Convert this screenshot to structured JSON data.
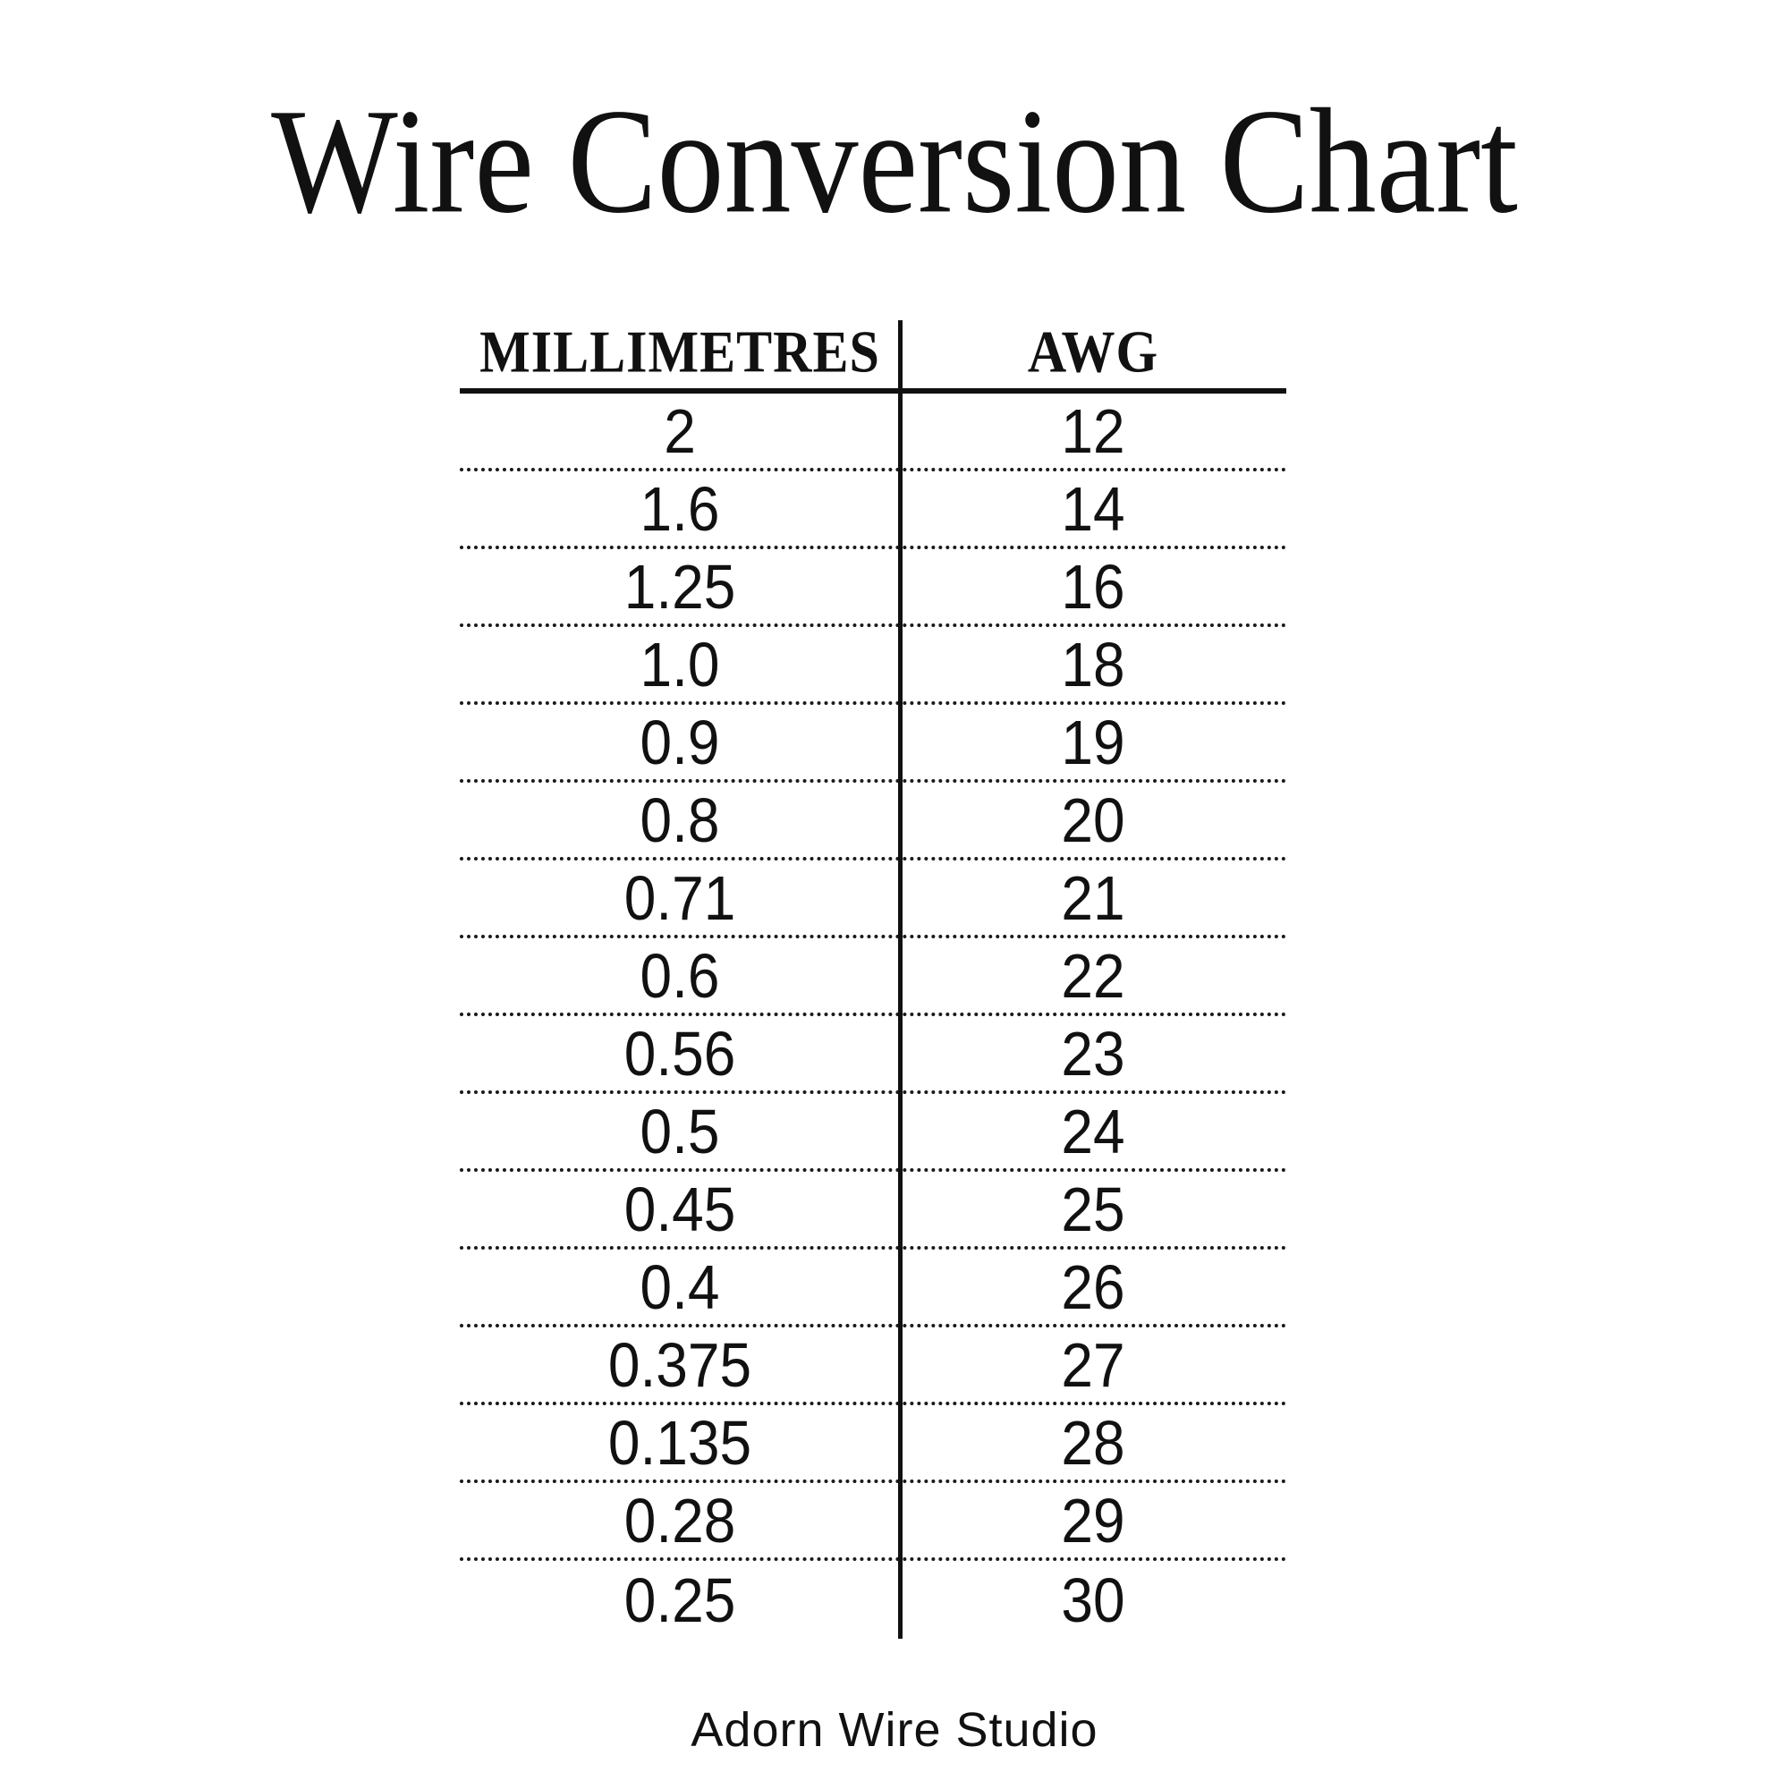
{
  "title": "Wire Conversion Chart",
  "table": {
    "headers": [
      "MILLIMETRES",
      "AWG"
    ],
    "rows": [
      [
        "2",
        "12"
      ],
      [
        "1.6",
        "14"
      ],
      [
        "1.25",
        "16"
      ],
      [
        "1.0",
        "18"
      ],
      [
        "0.9",
        "19"
      ],
      [
        "0.8",
        "20"
      ],
      [
        "0.71",
        "21"
      ],
      [
        "0.6",
        "22"
      ],
      [
        "0.56",
        "23"
      ],
      [
        "0.5",
        "24"
      ],
      [
        "0.45",
        "25"
      ],
      [
        "0.4",
        "26"
      ],
      [
        "0.375",
        "27"
      ],
      [
        "0.135",
        "28"
      ],
      [
        "0.28",
        "29"
      ],
      [
        "0.25",
        "30"
      ]
    ]
  },
  "footer": "Adorn Wire Studio",
  "colors": {
    "text": "#111111",
    "background": "#ffffff",
    "line": "#111111"
  },
  "chart_data": {
    "type": "table",
    "title": "Wire Conversion Chart",
    "columns": [
      "MILLIMETRES",
      "AWG"
    ],
    "rows": [
      [
        2,
        12
      ],
      [
        1.6,
        14
      ],
      [
        1.25,
        16
      ],
      [
        1.0,
        18
      ],
      [
        0.9,
        19
      ],
      [
        0.8,
        20
      ],
      [
        0.71,
        21
      ],
      [
        0.6,
        22
      ],
      [
        0.56,
        23
      ],
      [
        0.5,
        24
      ],
      [
        0.45,
        25
      ],
      [
        0.4,
        26
      ],
      [
        0.375,
        27
      ],
      [
        0.135,
        28
      ],
      [
        0.28,
        29
      ],
      [
        0.25,
        30
      ]
    ]
  }
}
